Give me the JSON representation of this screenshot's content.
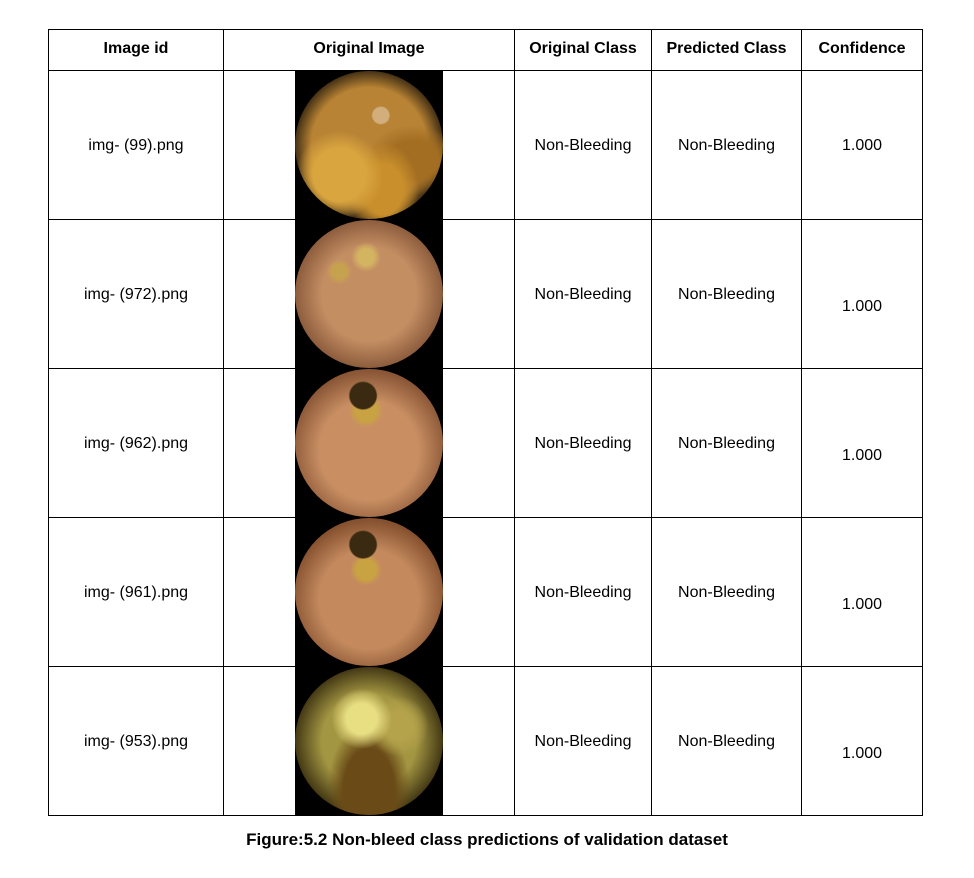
{
  "table": {
    "headers": [
      "Image id",
      "Original Image",
      "Original Class",
      "Predicted Class",
      "Confidence"
    ],
    "rows": [
      {
        "image_id": "img- (99).png",
        "original_class": "Non-Bleeding",
        "predicted_class": "Non-Bleeding",
        "confidence": "1.000"
      },
      {
        "image_id": "img- (972).png",
        "original_class": "Non-Bleeding",
        "predicted_class": "Non-Bleeding",
        "confidence": "1.000"
      },
      {
        "image_id": "img- (962).png",
        "original_class": "Non-Bleeding",
        "predicted_class": "Non-Bleeding",
        "confidence": "1.000"
      },
      {
        "image_id": "img- (961).png",
        "original_class": "Non-Bleeding",
        "predicted_class": "Non-Bleeding",
        "confidence": "1.000"
      },
      {
        "image_id": "img- (953).png",
        "original_class": "Non-Bleeding",
        "predicted_class": "Non-Bleeding",
        "confidence": "1.000"
      }
    ]
  },
  "caption": "Figure:5.2 Non-bleed class predictions of validation dataset"
}
